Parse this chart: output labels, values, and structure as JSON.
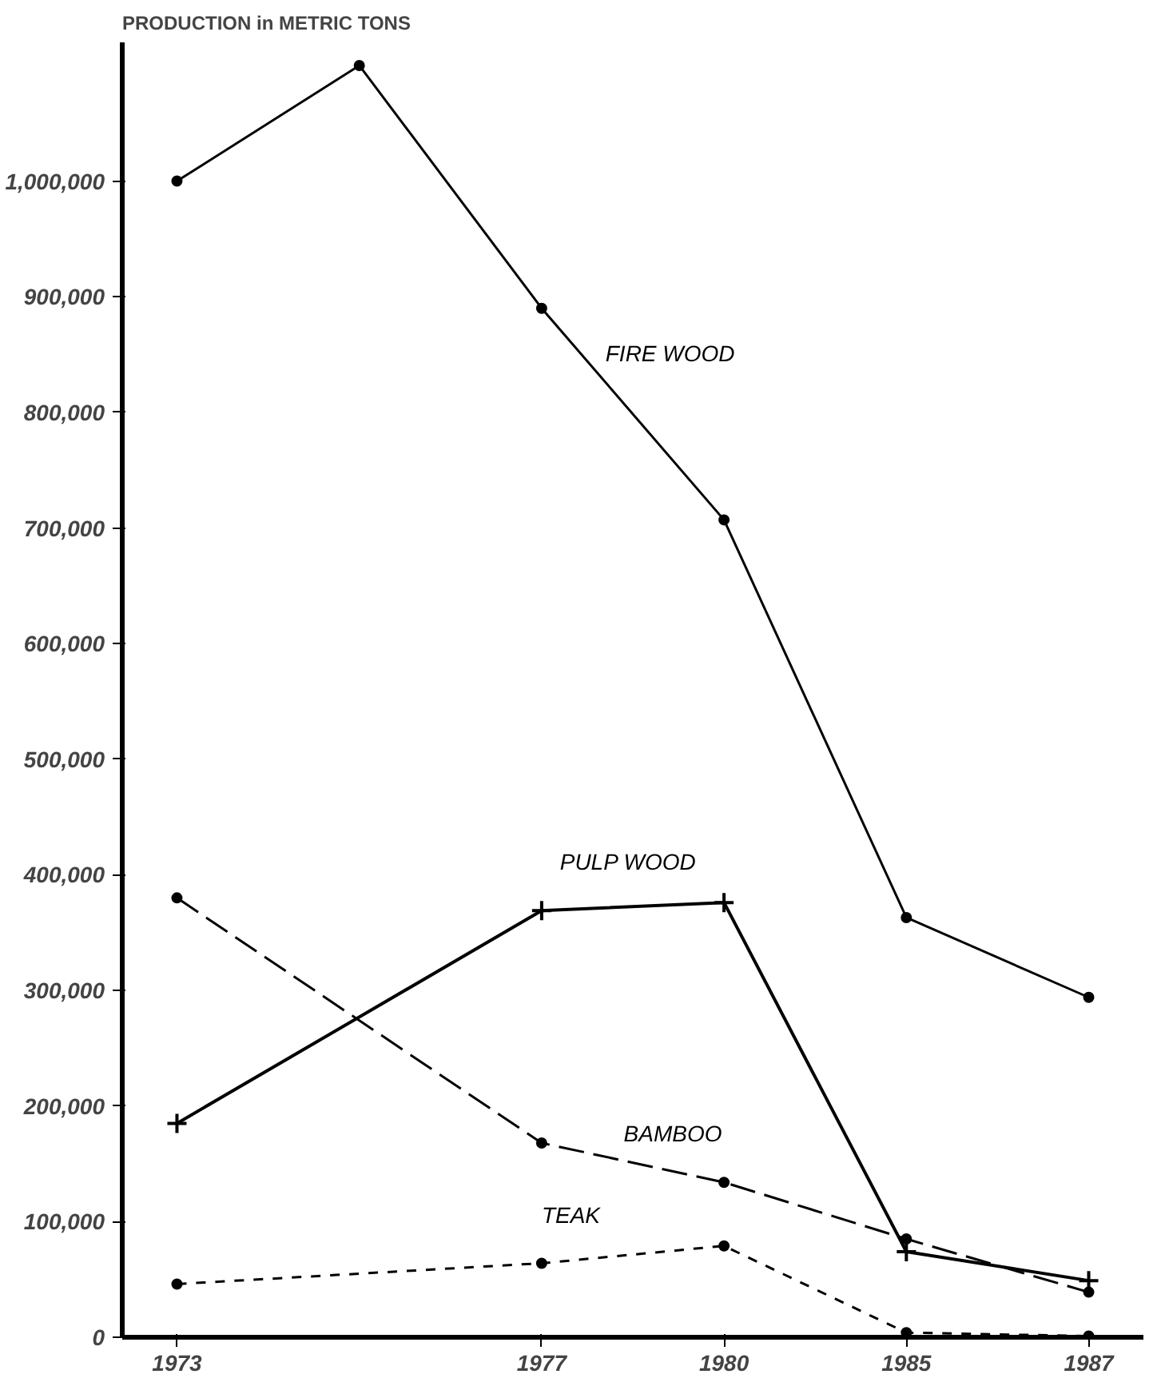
{
  "chart_data": {
    "type": "line",
    "ylabel": "PRODUCTION in METRIC TONS",
    "categories": [
      "1973",
      null,
      "1977",
      "1980",
      "1985",
      "1987"
    ],
    "series": [
      {
        "name": "FIRE WOOD",
        "color": "#000000",
        "line_style": "solid",
        "marker": "circle",
        "values": [
          1000000,
          1100000,
          890000,
          707000,
          363000,
          294000
        ]
      },
      {
        "name": "PULP WOOD",
        "color": "#000000",
        "line_style": "solid",
        "marker": "cross",
        "values": [
          185000,
          null,
          369000,
          376000,
          74000,
          49000
        ]
      },
      {
        "name": "BAMBOO",
        "color": "#000000",
        "line_style": "dashed",
        "marker": "circle",
        "values": [
          380000,
          null,
          168000,
          134000,
          85000,
          39000
        ]
      },
      {
        "name": "TEAK",
        "color": "#000000",
        "line_style": "dotted",
        "marker": "circle",
        "values": [
          46000,
          null,
          64000,
          79000,
          4000,
          1000
        ]
      }
    ],
    "ylim": [
      0,
      1120000
    ],
    "yticks": [
      0,
      {
        "value": 100000,
        "label": "100,000"
      },
      {
        "value": 200000,
        "label": "200,000"
      },
      {
        "value": 300000,
        "label": "300,000"
      },
      {
        "value": 400000,
        "label": "400,000"
      },
      {
        "value": 500000,
        "label": "500,000"
      },
      {
        "value": 600000,
        "label": "600,000"
      },
      {
        "value": 700000,
        "label": "700,000"
      },
      {
        "value": 800000,
        "label": "800,000"
      },
      {
        "value": 900000,
        "label": "900,000"
      },
      {
        "value": 1000000,
        "label": "1,000,000"
      }
    ],
    "grid": false
  }
}
